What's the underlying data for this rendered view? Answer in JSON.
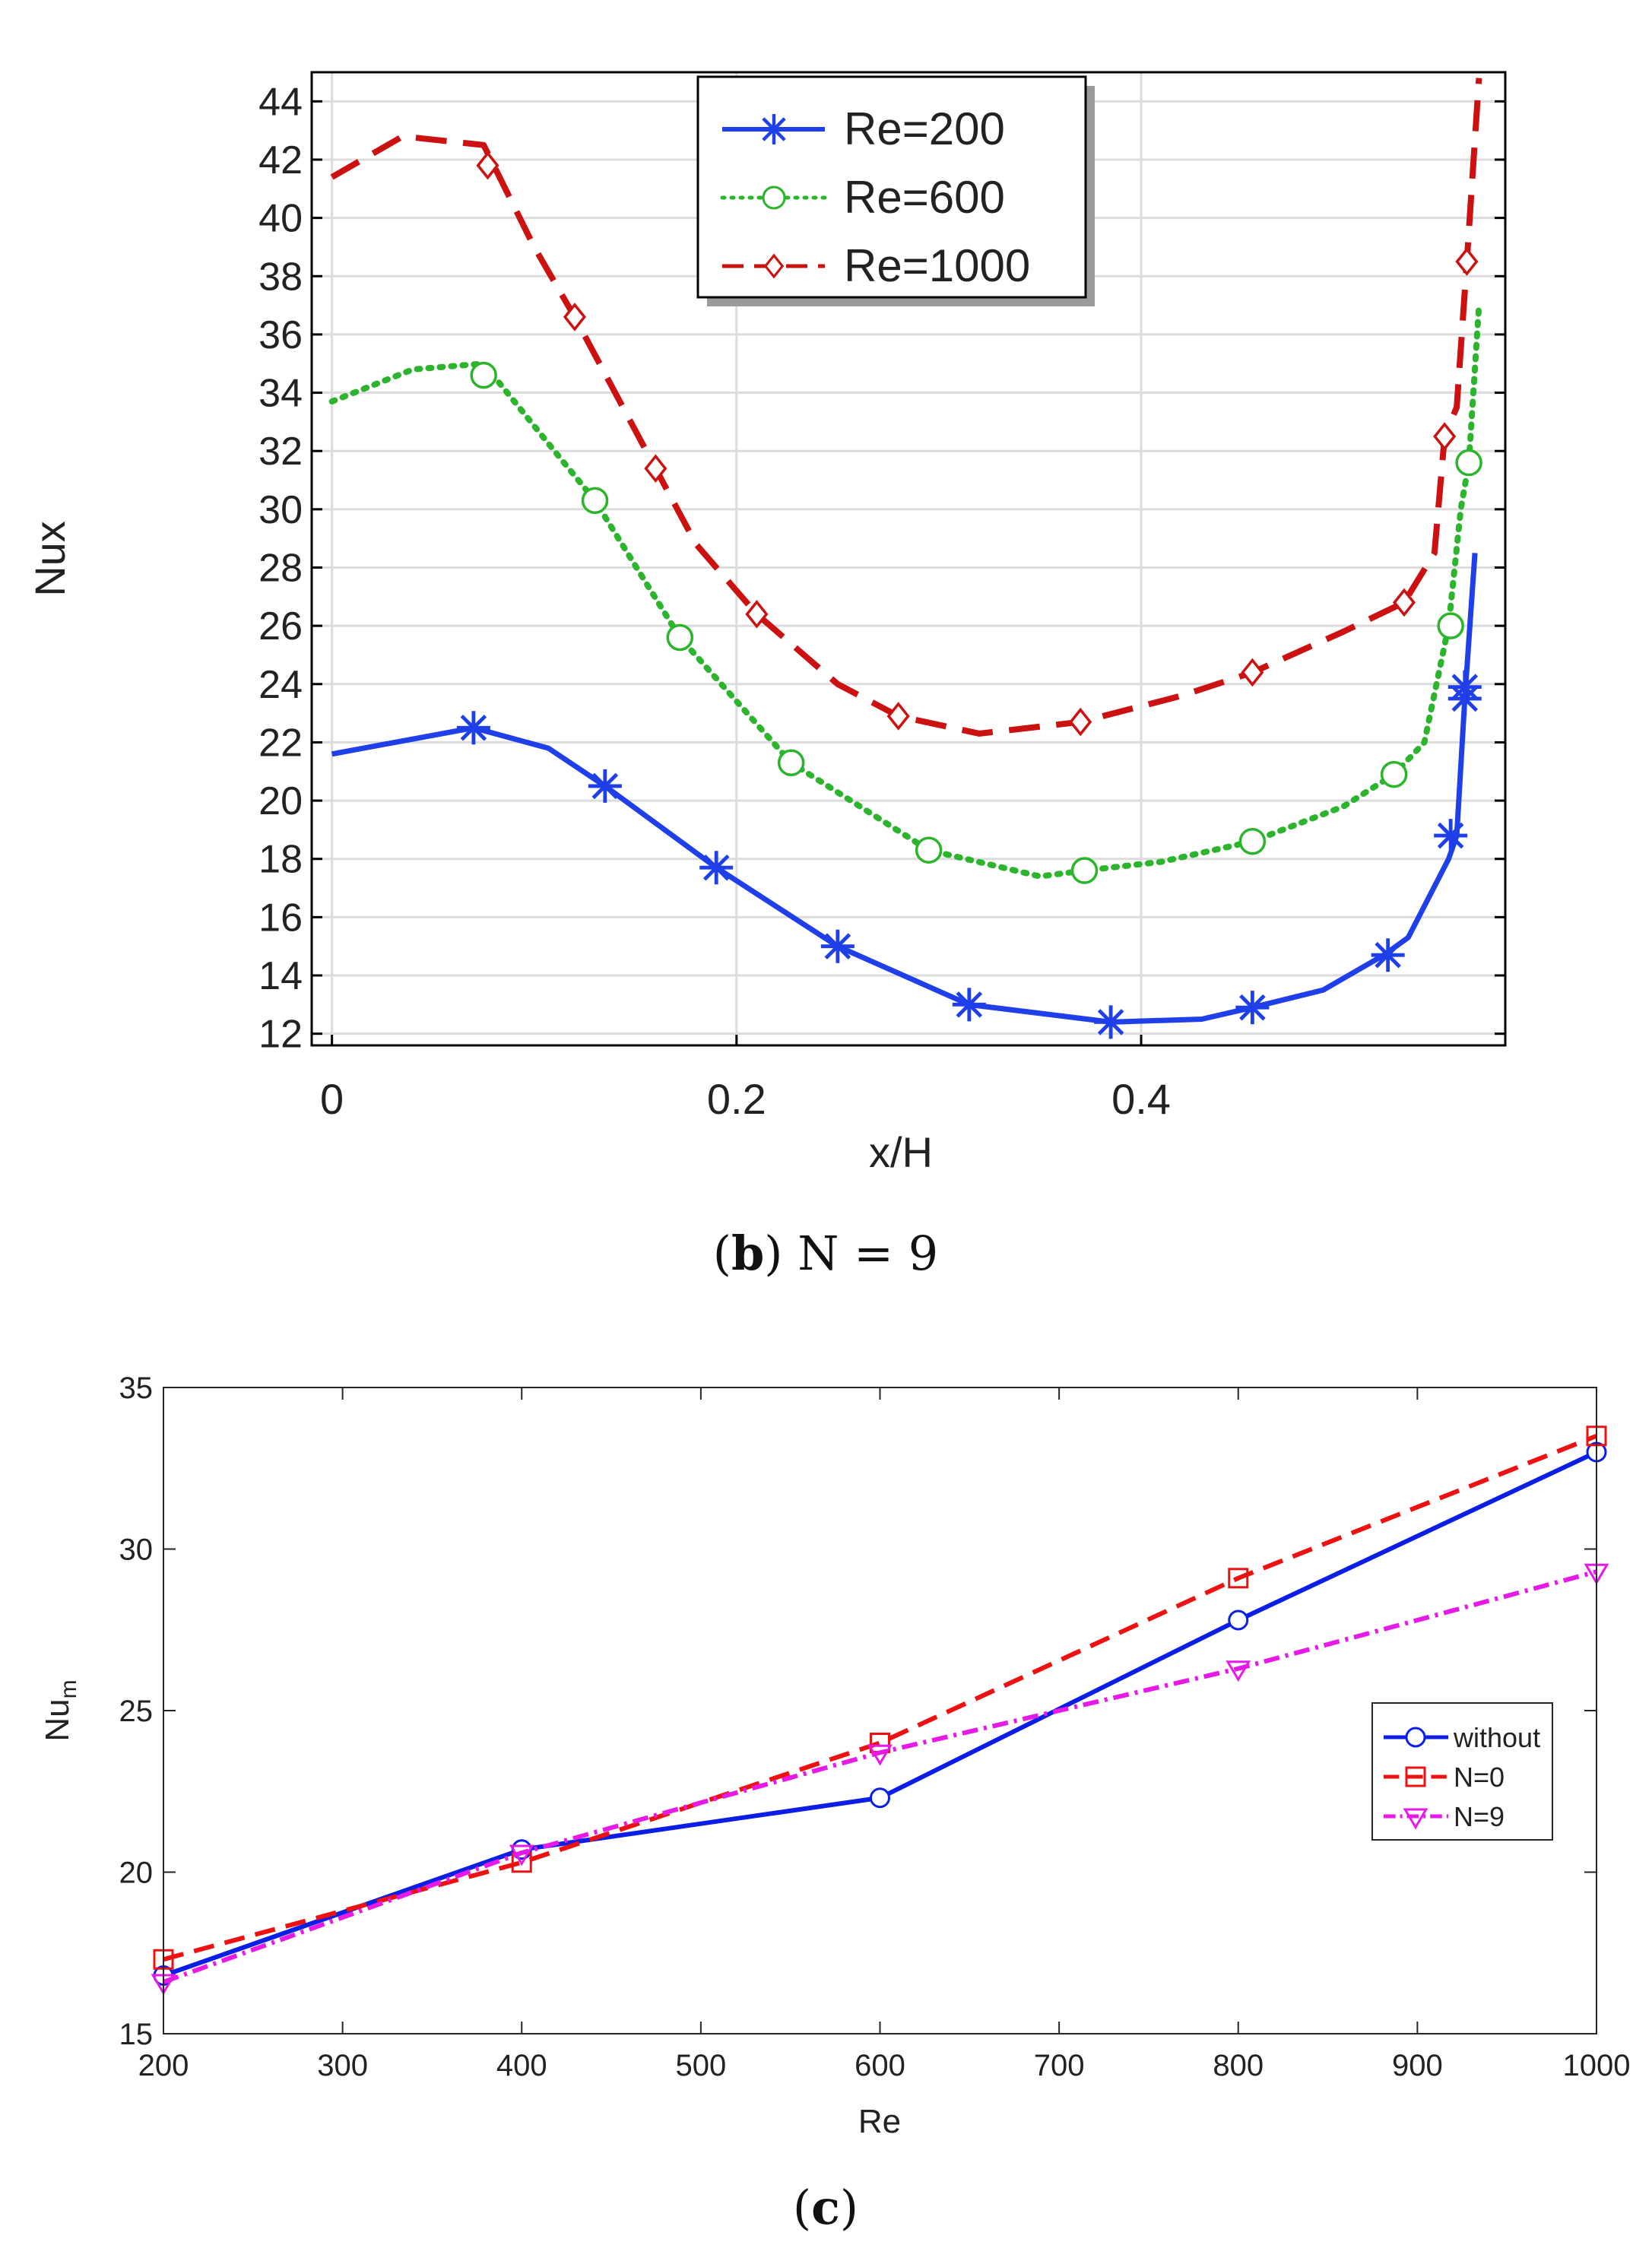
{
  "chart_data": [
    {
      "type": "line",
      "panel": "b",
      "caption_letter": "b",
      "caption_rest": ") N = 9",
      "caption_open": "(",
      "xlabel": "x/H",
      "ylabel": "Nux",
      "xlim": [
        -0.01,
        0.58
      ],
      "ylim": [
        11.6,
        45.0
      ],
      "xticks": [
        0,
        0.2,
        0.4
      ],
      "xtick_labels": [
        "0",
        "0.2",
        "0.4"
      ],
      "yticks": [
        12,
        14,
        16,
        18,
        20,
        22,
        24,
        26,
        28,
        30,
        32,
        34,
        36,
        38,
        40,
        42,
        44
      ],
      "ytick_labels": [
        "12",
        "14",
        "16",
        "18",
        "20",
        "22",
        "24",
        "26",
        "28",
        "30",
        "32",
        "34",
        "36",
        "38",
        "40",
        "42",
        "44"
      ],
      "grid": true,
      "legend_position": "top-center",
      "series": [
        {
          "name": "Re=200",
          "color": "#1f3fe8",
          "dash": "solid",
          "marker": "asterisk",
          "x": [
            0,
            0.07,
            0.107,
            0.135,
            0.19,
            0.25,
            0.315,
            0.385,
            0.43,
            0.455,
            0.49,
            0.52,
            0.532,
            0.552,
            0.556,
            0.56,
            0.565
          ],
          "y": [
            21.6,
            22.5,
            21.8,
            20.5,
            17.7,
            15.0,
            13.0,
            12.4,
            12.5,
            12.9,
            13.5,
            14.7,
            15.3,
            18.0,
            18.8,
            23.5,
            28.5
          ],
          "marker_x": [
            0.07,
            0.135,
            0.19,
            0.25,
            0.315,
            0.385,
            0.455,
            0.522,
            0.553,
            0.56,
            0.56
          ],
          "marker_y": [
            22.5,
            20.5,
            17.7,
            15.0,
            13.0,
            12.4,
            12.9,
            14.7,
            18.8,
            23.5,
            23.9
          ]
        },
        {
          "name": "Re=600",
          "color": "#2cb52c",
          "dash": "dotted",
          "marker": "circle",
          "x": [
            0,
            0.04,
            0.075,
            0.11,
            0.13,
            0.172,
            0.227,
            0.295,
            0.35,
            0.372,
            0.41,
            0.455,
            0.5,
            0.525,
            0.54,
            0.552,
            0.558,
            0.562,
            0.567
          ],
          "y": [
            33.7,
            34.8,
            35.0,
            32.0,
            30.3,
            25.6,
            21.3,
            18.3,
            17.4,
            17.6,
            17.9,
            18.6,
            19.8,
            20.9,
            22.0,
            26.0,
            30.0,
            31.6,
            37.0
          ],
          "marker_x": [
            0.075,
            0.13,
            0.172,
            0.227,
            0.295,
            0.372,
            0.455,
            0.525,
            0.553,
            0.562
          ],
          "marker_y": [
            34.6,
            30.3,
            25.6,
            21.3,
            18.3,
            17.6,
            18.6,
            20.9,
            26.0,
            31.6
          ]
        },
        {
          "name": "Re=1000",
          "color": "#cc1111",
          "dash": "dashed",
          "marker": "diamond",
          "x": [
            0,
            0.035,
            0.075,
            0.1,
            0.12,
            0.16,
            0.18,
            0.21,
            0.25,
            0.28,
            0.32,
            0.37,
            0.42,
            0.455,
            0.5,
            0.53,
            0.545,
            0.55,
            0.556,
            0.561,
            0.567
          ],
          "y": [
            41.4,
            42.8,
            42.5,
            39.0,
            36.6,
            31.4,
            28.8,
            26.4,
            24.0,
            22.9,
            22.3,
            22.7,
            23.6,
            24.4,
            25.8,
            26.8,
            28.5,
            32.5,
            33.5,
            38.5,
            44.8
          ],
          "marker_x": [
            0.077,
            0.12,
            0.16,
            0.21,
            0.28,
            0.37,
            0.455,
            0.53,
            0.55,
            0.561
          ],
          "marker_y": [
            41.8,
            36.6,
            31.4,
            26.4,
            22.9,
            22.7,
            24.4,
            26.8,
            32.5,
            38.5
          ]
        }
      ]
    },
    {
      "type": "line",
      "panel": "c",
      "caption_letter": "c",
      "caption_open": "(",
      "caption_rest": ")",
      "xlabel": "Re",
      "ylabel": "Nu",
      "ylabel_sub": "m",
      "xlim": [
        200,
        1000
      ],
      "ylim": [
        15,
        35
      ],
      "xticks": [
        200,
        300,
        400,
        500,
        600,
        700,
        800,
        900,
        1000
      ],
      "xtick_labels": [
        "200",
        "300",
        "400",
        "500",
        "600",
        "700",
        "800",
        "900",
        "1000"
      ],
      "yticks": [
        15,
        20,
        25,
        30,
        35
      ],
      "ytick_labels": [
        "15",
        "20",
        "25",
        "30",
        "35"
      ],
      "grid": false,
      "legend_position": "right",
      "series": [
        {
          "name": "without",
          "color": "#0a1ee6",
          "dash": "solid",
          "marker": "circle",
          "x": [
            200,
            400,
            600,
            800,
            1000
          ],
          "y": [
            16.8,
            20.7,
            22.3,
            27.8,
            33.0
          ]
        },
        {
          "name": "N=0",
          "color": "#ee1111",
          "dash": "dashed",
          "marker": "square",
          "x": [
            200,
            400,
            600,
            800,
            1000
          ],
          "y": [
            17.3,
            20.3,
            24.0,
            29.1,
            33.5
          ]
        },
        {
          "name": "N=9",
          "color": "#e619e6",
          "dash": "dashdot",
          "marker": "triangle-down",
          "x": [
            200,
            400,
            600,
            800,
            1000
          ],
          "y": [
            16.6,
            20.6,
            23.7,
            26.3,
            29.3
          ]
        }
      ]
    }
  ]
}
